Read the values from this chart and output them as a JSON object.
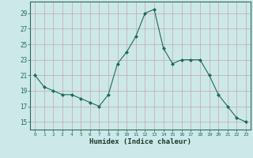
{
  "x": [
    0,
    1,
    2,
    3,
    4,
    5,
    6,
    7,
    8,
    9,
    10,
    11,
    12,
    13,
    14,
    15,
    16,
    17,
    18,
    19,
    20,
    21,
    22,
    23
  ],
  "y": [
    21,
    19.5,
    19,
    18.5,
    18.5,
    18,
    17.5,
    17,
    18.5,
    22.5,
    24,
    26,
    29,
    29.5,
    24.5,
    22.5,
    23,
    23,
    23,
    21,
    18.5,
    17,
    15.5,
    15
  ],
  "xlabel": "Humidex (Indice chaleur)",
  "line_color": "#1a6b5a",
  "marker": "D",
  "marker_size": 2.0,
  "bg_color": "#cde8e8",
  "grid_color": "#c4a8a8",
  "yticks": [
    15,
    17,
    19,
    21,
    23,
    25,
    27,
    29
  ],
  "xticks": [
    0,
    1,
    2,
    3,
    4,
    5,
    6,
    7,
    8,
    9,
    10,
    11,
    12,
    13,
    14,
    15,
    16,
    17,
    18,
    19,
    20,
    21,
    22,
    23
  ],
  "ylim": [
    14.0,
    30.5
  ],
  "xlim": [
    -0.5,
    23.5
  ]
}
